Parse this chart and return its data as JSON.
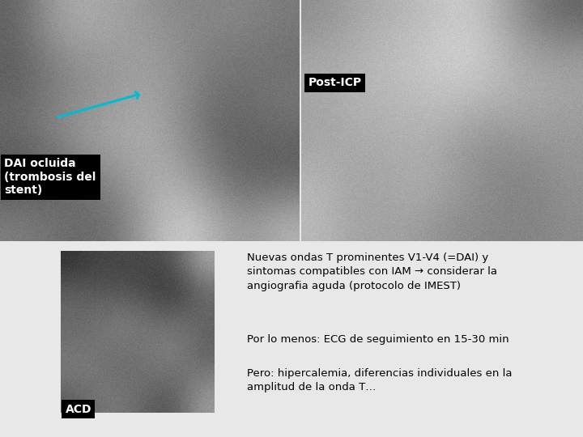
{
  "overall_bg": "#e8e8e8",
  "top_left_image": {
    "label": "DAI ocluida\n(trombosis del\nstent)",
    "label_bg": "#000000",
    "label_color": "#ffffff",
    "arrow_color": "#00bcd4",
    "avg_gray": 0.58
  },
  "top_right_image": {
    "label": "Post-ICP",
    "label_bg": "#000000",
    "label_color": "#ffffff",
    "avg_gray": 0.6
  },
  "bottom_left_image": {
    "label": "ACD",
    "label_bg": "#000000",
    "label_color": "#ffffff",
    "avg_gray": 0.45
  },
  "text_blocks": [
    {
      "text": "Nuevas ondas T prominentes V1-V4 (=DAI) y\nsintomas compatibles con IAM → considerar la\nangiografia aguda (protocolo de IMEST)",
      "fontsize": 9.5
    },
    {
      "text": "Por lo menos: ECG de seguimiento en 15-30 min",
      "fontsize": 9.5
    },
    {
      "text": "Pero: hipercalemia, diferencias individuales en la\namplitud de la onda T…",
      "fontsize": 9.5
    }
  ],
  "text_color": "#000000",
  "label_fontsize": 10
}
